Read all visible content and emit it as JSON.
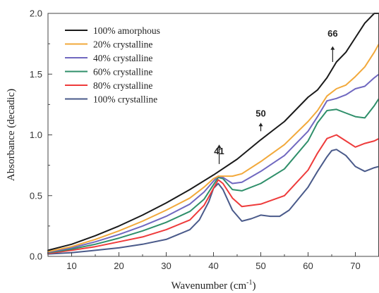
{
  "chart_data": {
    "type": "line",
    "xlabel": "Wavenumber (cm",
    "xlabel_sup": "-1",
    "xlabel_close": ")",
    "ylabel": "Absorbance (decadic)",
    "xlim": [
      5,
      75
    ],
    "ylim": [
      0,
      2
    ],
    "xticks": [
      10,
      20,
      30,
      40,
      50,
      60,
      70
    ],
    "yticks": [
      "0.0",
      "0.5",
      "1.0",
      "1.5",
      "2.0"
    ],
    "legend_position": "top-left",
    "annotations": [
      {
        "text": "41",
        "x": 41.2,
        "y": 0.84,
        "arrow_from": 0.76,
        "arrow_to": 0.92
      },
      {
        "text": "50",
        "x": 50,
        "y": 1.15,
        "arrow_from": 1.03,
        "arrow_to": 1.1
      },
      {
        "text": "66",
        "x": 65.2,
        "y": 1.81,
        "arrow_from": 1.6,
        "arrow_to": 1.73
      }
    ],
    "series": [
      {
        "name": "100% amorphous",
        "color": "#1a1a1a",
        "x": [
          5,
          10,
          15,
          20,
          25,
          30,
          35,
          40,
          45,
          50,
          55,
          60,
          62,
          64,
          66,
          68,
          70,
          72,
          74,
          75
        ],
        "y": [
          0.05,
          0.1,
          0.17,
          0.25,
          0.34,
          0.44,
          0.55,
          0.67,
          0.8,
          0.96,
          1.11,
          1.31,
          1.37,
          1.47,
          1.6,
          1.68,
          1.8,
          1.92,
          2.0,
          2.0
        ]
      },
      {
        "name": "20% crystalline",
        "color": "#f2a93b",
        "x": [
          5,
          10,
          15,
          20,
          25,
          30,
          35,
          38,
          40,
          41,
          42,
          44,
          46,
          50,
          55,
          60,
          62,
          64,
          66,
          68,
          70,
          72,
          74,
          75
        ],
        "y": [
          0.04,
          0.08,
          0.14,
          0.21,
          0.29,
          0.38,
          0.48,
          0.57,
          0.64,
          0.66,
          0.66,
          0.66,
          0.68,
          0.78,
          0.92,
          1.11,
          1.2,
          1.32,
          1.38,
          1.41,
          1.48,
          1.56,
          1.68,
          1.75
        ]
      },
      {
        "name": "40% crystalline",
        "color": "#7068c0",
        "x": [
          5,
          10,
          15,
          20,
          25,
          30,
          35,
          38,
          40,
          41,
          42,
          44,
          46,
          50,
          55,
          60,
          62,
          64,
          66,
          68,
          70,
          72,
          74,
          75
        ],
        "y": [
          0.035,
          0.07,
          0.12,
          0.18,
          0.25,
          0.33,
          0.43,
          0.53,
          0.62,
          0.66,
          0.65,
          0.6,
          0.61,
          0.7,
          0.83,
          1.03,
          1.15,
          1.28,
          1.3,
          1.33,
          1.38,
          1.4,
          1.47,
          1.5
        ]
      },
      {
        "name": "60% crystalline",
        "color": "#2f8f6a",
        "x": [
          5,
          10,
          15,
          20,
          25,
          30,
          35,
          38,
          40,
          41,
          42,
          44,
          46,
          50,
          55,
          60,
          62,
          64,
          66,
          68,
          70,
          72,
          74,
          75
        ],
        "y": [
          0.03,
          0.06,
          0.1,
          0.15,
          0.21,
          0.28,
          0.37,
          0.47,
          0.59,
          0.65,
          0.64,
          0.55,
          0.54,
          0.6,
          0.72,
          0.95,
          1.1,
          1.2,
          1.21,
          1.18,
          1.15,
          1.14,
          1.24,
          1.3
        ]
      },
      {
        "name": "80% crystalline",
        "color": "#ee3b3b",
        "x": [
          5,
          10,
          15,
          20,
          25,
          30,
          35,
          38,
          40,
          41,
          42,
          44,
          46,
          50,
          55,
          60,
          62,
          64,
          66,
          68,
          70,
          72,
          74,
          75
        ],
        "y": [
          0.025,
          0.05,
          0.08,
          0.12,
          0.16,
          0.22,
          0.3,
          0.42,
          0.56,
          0.63,
          0.6,
          0.48,
          0.41,
          0.43,
          0.5,
          0.71,
          0.85,
          0.97,
          1.0,
          0.95,
          0.9,
          0.93,
          0.95,
          0.97
        ]
      },
      {
        "name": "100% crystalline",
        "color": "#4a5a8a",
        "x": [
          5,
          10,
          15,
          20,
          25,
          30,
          35,
          37,
          39,
          40,
          41,
          42,
          44,
          46,
          48,
          50,
          52,
          54,
          56,
          60,
          62,
          64,
          65,
          66,
          68,
          70,
          72,
          74,
          75
        ],
        "y": [
          0.02,
          0.03,
          0.05,
          0.07,
          0.1,
          0.14,
          0.22,
          0.3,
          0.45,
          0.56,
          0.6,
          0.55,
          0.38,
          0.29,
          0.31,
          0.34,
          0.33,
          0.33,
          0.38,
          0.57,
          0.7,
          0.82,
          0.87,
          0.88,
          0.83,
          0.74,
          0.7,
          0.73,
          0.74
        ]
      }
    ]
  }
}
